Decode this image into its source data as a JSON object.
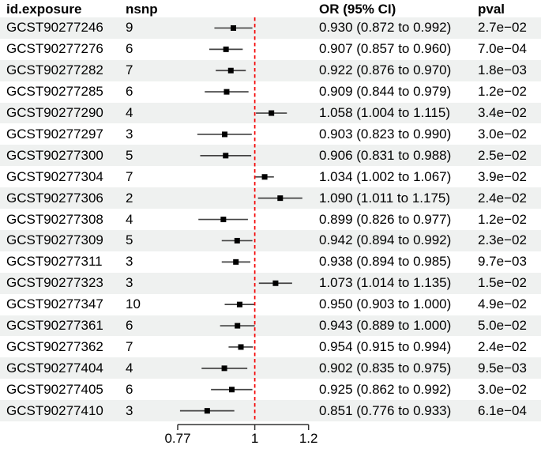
{
  "table": {
    "headers": {
      "id": "id.exposure",
      "nsnp": "nsnp",
      "or_ci": "OR (95% CI)",
      "pval": "pval"
    }
  },
  "chart_data": {
    "type": "forest",
    "title": "",
    "xlabel": "",
    "axis": {
      "scale": "log",
      "ticks": [
        0.77,
        1,
        1.2
      ],
      "tick_labels": [
        "0.77",
        "1",
        "1.2"
      ],
      "ref_line": 1,
      "xlim": [
        0.77,
        1.2
      ],
      "grid": false
    },
    "colors": {
      "ref_line": "#f40000",
      "ci_line": "#434343",
      "marker": "#000000",
      "stripe": "#eff1f0",
      "axis_line": "#333333"
    },
    "rows": [
      {
        "id": "GCST90277246",
        "nsnp": 9,
        "or": 0.93,
        "ci_low": 0.872,
        "ci_high": 0.992,
        "or_ci": "0.930 (0.872 to 0.992)",
        "pval": "2.7e−02"
      },
      {
        "id": "GCST90277276",
        "nsnp": 6,
        "or": 0.907,
        "ci_low": 0.857,
        "ci_high": 0.96,
        "or_ci": "0.907 (0.857 to 0.960)",
        "pval": "7.0e−04"
      },
      {
        "id": "GCST90277282",
        "nsnp": 7,
        "or": 0.922,
        "ci_low": 0.876,
        "ci_high": 0.97,
        "or_ci": "0.922 (0.876 to 0.970)",
        "pval": "1.8e−03"
      },
      {
        "id": "GCST90277285",
        "nsnp": 6,
        "or": 0.909,
        "ci_low": 0.844,
        "ci_high": 0.979,
        "or_ci": "0.909 (0.844 to 0.979)",
        "pval": "1.2e−02"
      },
      {
        "id": "GCST90277290",
        "nsnp": 4,
        "or": 1.058,
        "ci_low": 1.004,
        "ci_high": 1.115,
        "or_ci": "1.058 (1.004 to 1.115)",
        "pval": "3.4e−02"
      },
      {
        "id": "GCST90277297",
        "nsnp": 3,
        "or": 0.903,
        "ci_low": 0.823,
        "ci_high": 0.99,
        "or_ci": "0.903 (0.823 to 0.990)",
        "pval": "3.0e−02"
      },
      {
        "id": "GCST90277300",
        "nsnp": 5,
        "or": 0.906,
        "ci_low": 0.831,
        "ci_high": 0.988,
        "or_ci": "0.906 (0.831 to 0.988)",
        "pval": "2.5e−02"
      },
      {
        "id": "GCST90277304",
        "nsnp": 7,
        "or": 1.034,
        "ci_low": 1.002,
        "ci_high": 1.067,
        "or_ci": "1.034 (1.002 to 1.067)",
        "pval": "3.9e−02"
      },
      {
        "id": "GCST90277306",
        "nsnp": 2,
        "or": 1.09,
        "ci_low": 1.011,
        "ci_high": 1.175,
        "or_ci": "1.090 (1.011 to 1.175)",
        "pval": "2.4e−02"
      },
      {
        "id": "GCST90277308",
        "nsnp": 4,
        "or": 0.899,
        "ci_low": 0.826,
        "ci_high": 0.977,
        "or_ci": "0.899 (0.826 to 0.977)",
        "pval": "1.2e−02"
      },
      {
        "id": "GCST90277309",
        "nsnp": 5,
        "or": 0.942,
        "ci_low": 0.894,
        "ci_high": 0.992,
        "or_ci": "0.942 (0.894 to 0.992)",
        "pval": "2.3e−02"
      },
      {
        "id": "GCST90277311",
        "nsnp": 3,
        "or": 0.938,
        "ci_low": 0.894,
        "ci_high": 0.985,
        "or_ci": "0.938 (0.894 to 0.985)",
        "pval": "9.7e−03"
      },
      {
        "id": "GCST90277323",
        "nsnp": 3,
        "or": 1.073,
        "ci_low": 1.014,
        "ci_high": 1.135,
        "or_ci": "1.073 (1.014 to 1.135)",
        "pval": "1.5e−02"
      },
      {
        "id": "GCST90277347",
        "nsnp": 10,
        "or": 0.95,
        "ci_low": 0.903,
        "ci_high": 1.0,
        "or_ci": "0.950 (0.903 to 1.000)",
        "pval": "4.9e−02"
      },
      {
        "id": "GCST90277361",
        "nsnp": 6,
        "or": 0.943,
        "ci_low": 0.889,
        "ci_high": 1.0,
        "or_ci": "0.943 (0.889 to 1.000)",
        "pval": "5.0e−02"
      },
      {
        "id": "GCST90277362",
        "nsnp": 7,
        "or": 0.954,
        "ci_low": 0.915,
        "ci_high": 0.994,
        "or_ci": "0.954 (0.915 to 0.994)",
        "pval": "2.4e−02"
      },
      {
        "id": "GCST90277404",
        "nsnp": 4,
        "or": 0.902,
        "ci_low": 0.835,
        "ci_high": 0.975,
        "or_ci": "0.902 (0.835 to 0.975)",
        "pval": "9.5e−03"
      },
      {
        "id": "GCST90277405",
        "nsnp": 6,
        "or": 0.925,
        "ci_low": 0.862,
        "ci_high": 0.992,
        "or_ci": "0.925 (0.862 to 0.992)",
        "pval": "3.0e−02"
      },
      {
        "id": "GCST90277410",
        "nsnp": 3,
        "or": 0.851,
        "ci_low": 0.776,
        "ci_high": 0.933,
        "or_ci": "0.851 (0.776 to 0.933)",
        "pval": "6.1e−04"
      }
    ]
  }
}
